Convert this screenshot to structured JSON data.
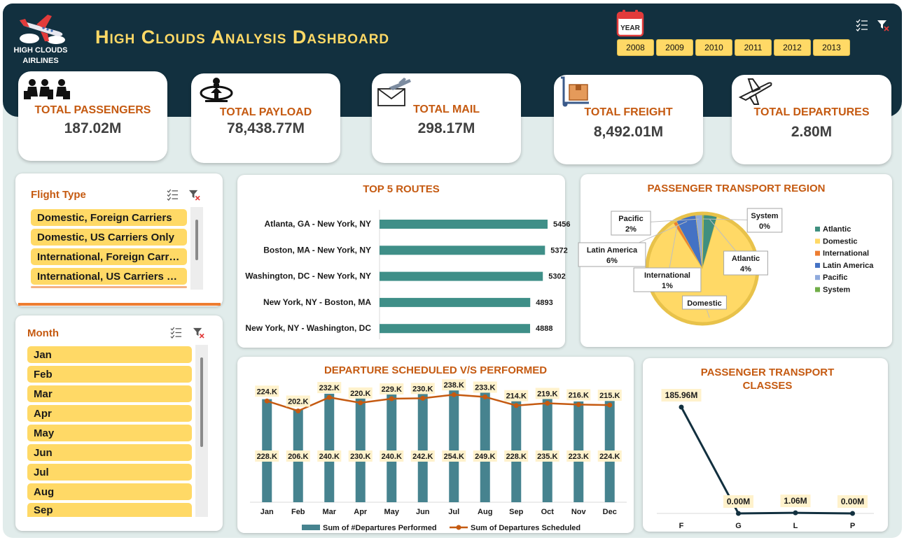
{
  "brand": {
    "name": "HIGH CLOUDS AIRLINES",
    "title": "High Clouds Analysis Dashboard"
  },
  "year_filter": {
    "icon_text": "YEAR",
    "years": [
      "2008",
      "2009",
      "2010",
      "2011",
      "2012",
      "2013"
    ]
  },
  "kpis": [
    {
      "label": "TOTAL PASSENGERS",
      "value": "187.02M",
      "icon": "passengers-icon"
    },
    {
      "label": "TOTAL PAYLOAD",
      "value": "78,438.77M",
      "icon": "payload-icon"
    },
    {
      "label": "TOTAL MAIL",
      "value": "298.17M",
      "icon": "mail-icon"
    },
    {
      "label": "TOTAL FREIGHT",
      "value": "8,492.01M",
      "icon": "freight-icon"
    },
    {
      "label": "TOTAL DEPARTURES",
      "value": "2.80M",
      "icon": "departures-icon"
    }
  ],
  "flight_type": {
    "title": "Flight Type",
    "items": [
      "Domestic, Foreign Carriers",
      "Domestic, US Carriers Only",
      "International, Foreign Carr…",
      "International, US Carriers …"
    ]
  },
  "month_slicer": {
    "title": "Month",
    "items": [
      "Jan",
      "Feb",
      "Mar",
      "Apr",
      "May",
      "Jun",
      "Jul",
      "Aug",
      "Sep"
    ]
  },
  "colors": {
    "navy": "#12303f",
    "gold": "#ffd966",
    "orange": "#c55a11",
    "teal": "#3f8f88",
    "bar_blue": "#46838f"
  },
  "chart_data": [
    {
      "type": "bar",
      "title": "TOP 5 ROUTES",
      "orientation": "horizontal",
      "categories": [
        "Atlanta, GA - New York, NY",
        "Boston, MA - New York, NY",
        "Washington, DC - New York, NY",
        "New York, NY - Boston, MA",
        "New York, NY - Washington, DC"
      ],
      "values": [
        5456,
        5372,
        5302,
        4893,
        4888
      ],
      "data_labels": [
        "5456",
        "5372",
        "5302",
        "4893",
        "4888"
      ],
      "color": "#3f8f88"
    },
    {
      "type": "pie",
      "title": "PASSENGER TRANSPORT REGION",
      "legend_position": "right",
      "slices": [
        {
          "name": "Atlantic",
          "label": "Atlantic",
          "value": 4,
          "pct_label": "4%",
          "color": "#3f8f7f"
        },
        {
          "name": "Domestic",
          "label": "Domestic",
          "value": 87,
          "pct_label": "",
          "color": "#ffd966"
        },
        {
          "name": "International",
          "label": "International",
          "value": 1,
          "pct_label": "1%",
          "color": "#ed7d31"
        },
        {
          "name": "Latin America",
          "label": "Latin America",
          "value": 6,
          "pct_label": "6%",
          "color": "#4472c4"
        },
        {
          "name": "Pacific",
          "label": "Pacific",
          "value": 2,
          "pct_label": "2%",
          "color": "#8faadc"
        },
        {
          "name": "System",
          "label": "System",
          "value": 0.4,
          "pct_label": "0%",
          "color": "#70ad47"
        }
      ]
    },
    {
      "type": "bar",
      "title": "DEPARTURE SCHEDULED V/S PERFORMED",
      "categories": [
        "Jan",
        "Feb",
        "Mar",
        "Apr",
        "May",
        "Jun",
        "Jul",
        "Aug",
        "Sep",
        "Oct",
        "Nov",
        "Dec"
      ],
      "ylim": [
        0,
        260
      ],
      "series": [
        {
          "name": "Sum of #Departures Performed",
          "type": "bar",
          "values": [
            228,
            206,
            240,
            230,
            240,
            242,
            254,
            249,
            228,
            235,
            223,
            224
          ],
          "labels": [
            "228.K",
            "206.K",
            "240.K",
            "230.K",
            "240.K",
            "242.K",
            "254.K",
            "249.K",
            "228.K",
            "235.K",
            "223.K",
            "224.K"
          ],
          "color": "#46838f"
        },
        {
          "name": "Sum of Departures Scheduled",
          "type": "line",
          "values": [
            224,
            202,
            232,
            220,
            229,
            230,
            238,
            233,
            214,
            219,
            216,
            215
          ],
          "labels": [
            "224.K",
            "202.K",
            "232.K",
            "220.K",
            "229.K",
            "230.K",
            "238.K",
            "233.K",
            "214.K",
            "219.K",
            "216.K",
            "215.K"
          ],
          "color": "#c55a11"
        }
      ]
    },
    {
      "type": "line",
      "title": "PASSENGER TRANSPORT CLASSES",
      "categories": [
        "F",
        "G",
        "L",
        "P"
      ],
      "values": [
        185.96,
        0.0,
        1.06,
        0.0
      ],
      "data_labels": [
        "185.96M",
        "0.00M",
        "1.06M",
        "0.00M"
      ],
      "color": "#12303f"
    }
  ]
}
